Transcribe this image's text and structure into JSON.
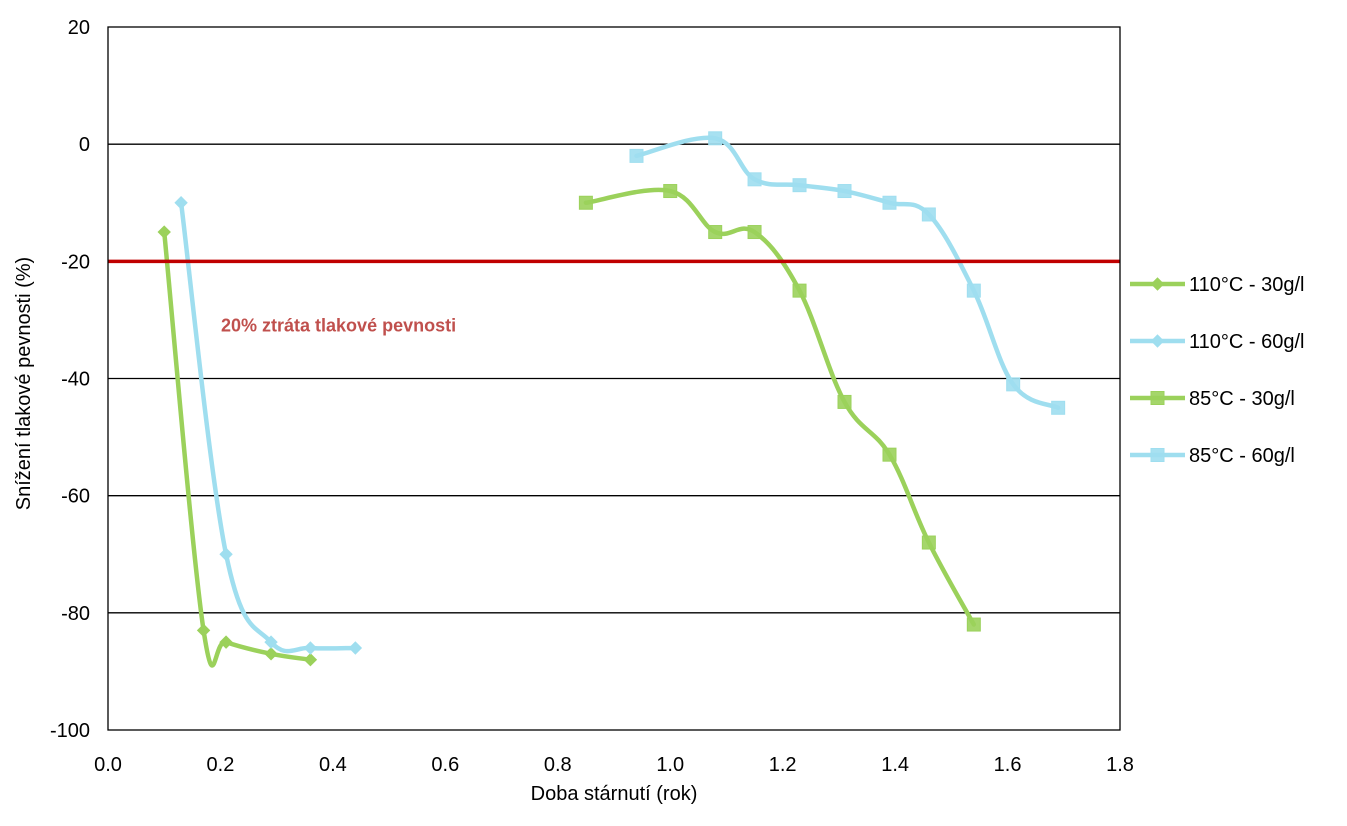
{
  "chart_data": {
    "type": "scatter",
    "title": "",
    "xlabel": "Doba stárnutí (rok)",
    "ylabel": "Snížení tlakové pevnosti (%)",
    "xlim": [
      0.0,
      1.8
    ],
    "ylim": [
      -100,
      20
    ],
    "x_ticks": [
      "0.0",
      "0.2",
      "0.4",
      "0.6",
      "0.8",
      "1.0",
      "1.2",
      "1.4",
      "1.6",
      "1.8"
    ],
    "y_ticks": [
      "20",
      "0",
      "-20",
      "-40",
      "-60",
      "-80",
      "-100"
    ],
    "grid": "horizontal",
    "legend_position": "right",
    "threshold": {
      "y": -20,
      "label": "20% ztráta tlakové pevnosti",
      "color": "#c00000",
      "label_color": "#c0504d"
    },
    "series": [
      {
        "name": "110°C - 30g/l",
        "marker": "diamond",
        "color": "#9bd15b",
        "x": [
          0.1,
          0.17,
          0.21,
          0.29,
          0.36
        ],
        "y": [
          -15,
          -83,
          -85,
          -87,
          -88
        ]
      },
      {
        "name": "110°C - 60g/l",
        "marker": "diamond",
        "color": "#9fdeef",
        "x": [
          0.13,
          0.21,
          0.29,
          0.36,
          0.44
        ],
        "y": [
          -10,
          -70,
          -85,
          -86,
          -86
        ]
      },
      {
        "name": "85°C - 30g/l",
        "marker": "square",
        "color": "#9bd15b",
        "x": [
          0.85,
          1.0,
          1.08,
          1.15,
          1.23,
          1.31,
          1.39,
          1.46,
          1.54
        ],
        "y": [
          -10,
          -8,
          -15,
          -15,
          -25,
          -44,
          -53,
          -68,
          -82
        ]
      },
      {
        "name": "85°C - 60g/l",
        "marker": "square",
        "color": "#9fdeef",
        "x": [
          0.94,
          1.08,
          1.15,
          1.23,
          1.31,
          1.39,
          1.46,
          1.54,
          1.61,
          1.69
        ],
        "y": [
          -2,
          1,
          -6,
          -7,
          -8,
          -10,
          -12,
          -25,
          -41,
          -45
        ]
      }
    ]
  }
}
